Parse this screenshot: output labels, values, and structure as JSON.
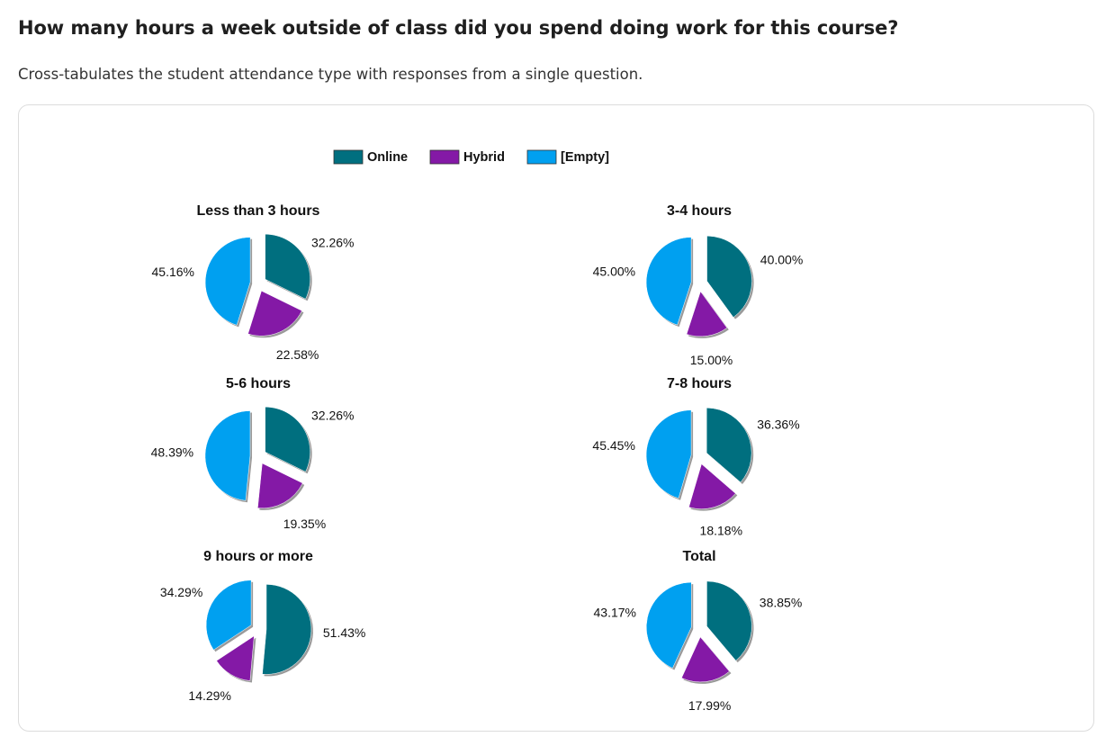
{
  "page": {
    "title": "How many hours a week outside of class did you spend doing work for this course?",
    "description": "Cross-tabulates the student attendance type with responses from a single question."
  },
  "colors": {
    "Online": "#006f7f",
    "Hybrid": "#8419a6",
    "[Empty]": "#00a0f0"
  },
  "chart_data": {
    "type": "pie",
    "legend": [
      "Online",
      "Hybrid",
      "[Empty]"
    ],
    "legend_position": "top-center",
    "pies": [
      {
        "title": "Less than 3 hours",
        "slices": [
          {
            "label": "Online",
            "value": 32.26,
            "text": "32.26%"
          },
          {
            "label": "Hybrid",
            "value": 22.58,
            "text": "22.58%"
          },
          {
            "label": "[Empty]",
            "value": 45.16,
            "text": "45.16%"
          }
        ]
      },
      {
        "title": "3-4 hours",
        "slices": [
          {
            "label": "Online",
            "value": 40.0,
            "text": "40.00%"
          },
          {
            "label": "Hybrid",
            "value": 15.0,
            "text": "15.00%"
          },
          {
            "label": "[Empty]",
            "value": 45.0,
            "text": "45.00%"
          }
        ]
      },
      {
        "title": "5-6 hours",
        "slices": [
          {
            "label": "Online",
            "value": 32.26,
            "text": "32.26%"
          },
          {
            "label": "Hybrid",
            "value": 19.35,
            "text": "19.35%"
          },
          {
            "label": "[Empty]",
            "value": 48.39,
            "text": "48.39%"
          }
        ]
      },
      {
        "title": "7-8 hours",
        "slices": [
          {
            "label": "Online",
            "value": 36.36,
            "text": "36.36%"
          },
          {
            "label": "Hybrid",
            "value": 18.18,
            "text": "18.18%"
          },
          {
            "label": "[Empty]",
            "value": 45.45,
            "text": "45.45%"
          }
        ]
      },
      {
        "title": "9 hours or more",
        "slices": [
          {
            "label": "Online",
            "value": 51.43,
            "text": "51.43%"
          },
          {
            "label": "Hybrid",
            "value": 14.29,
            "text": "14.29%"
          },
          {
            "label": "[Empty]",
            "value": 34.29,
            "text": "34.29%"
          }
        ]
      },
      {
        "title": "Total",
        "slices": [
          {
            "label": "Online",
            "value": 38.85,
            "text": "38.85%"
          },
          {
            "label": "Hybrid",
            "value": 17.99,
            "text": "17.99%"
          },
          {
            "label": "[Empty]",
            "value": 43.17,
            "text": "43.17%"
          }
        ]
      }
    ]
  }
}
